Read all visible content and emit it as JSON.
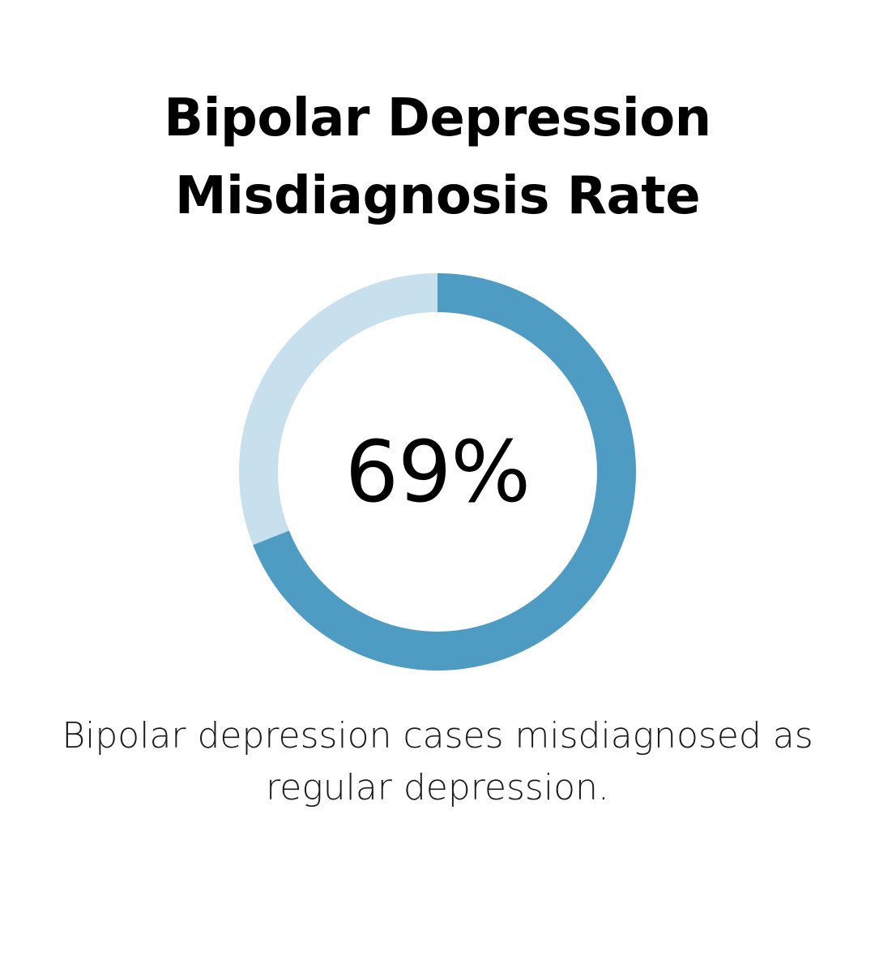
{
  "chart_data": {
    "type": "pie",
    "title_lines": [
      "Bipolar Depression",
      "Misdiagnosis Rate"
    ],
    "value": 69,
    "value_label": "69%",
    "caption_lines": [
      "Bipolar depression cases misdiagnosed as",
      "regular depression."
    ],
    "colors": {
      "filled": "#4e9cc3",
      "remaining": "#c8e0ed"
    }
  }
}
